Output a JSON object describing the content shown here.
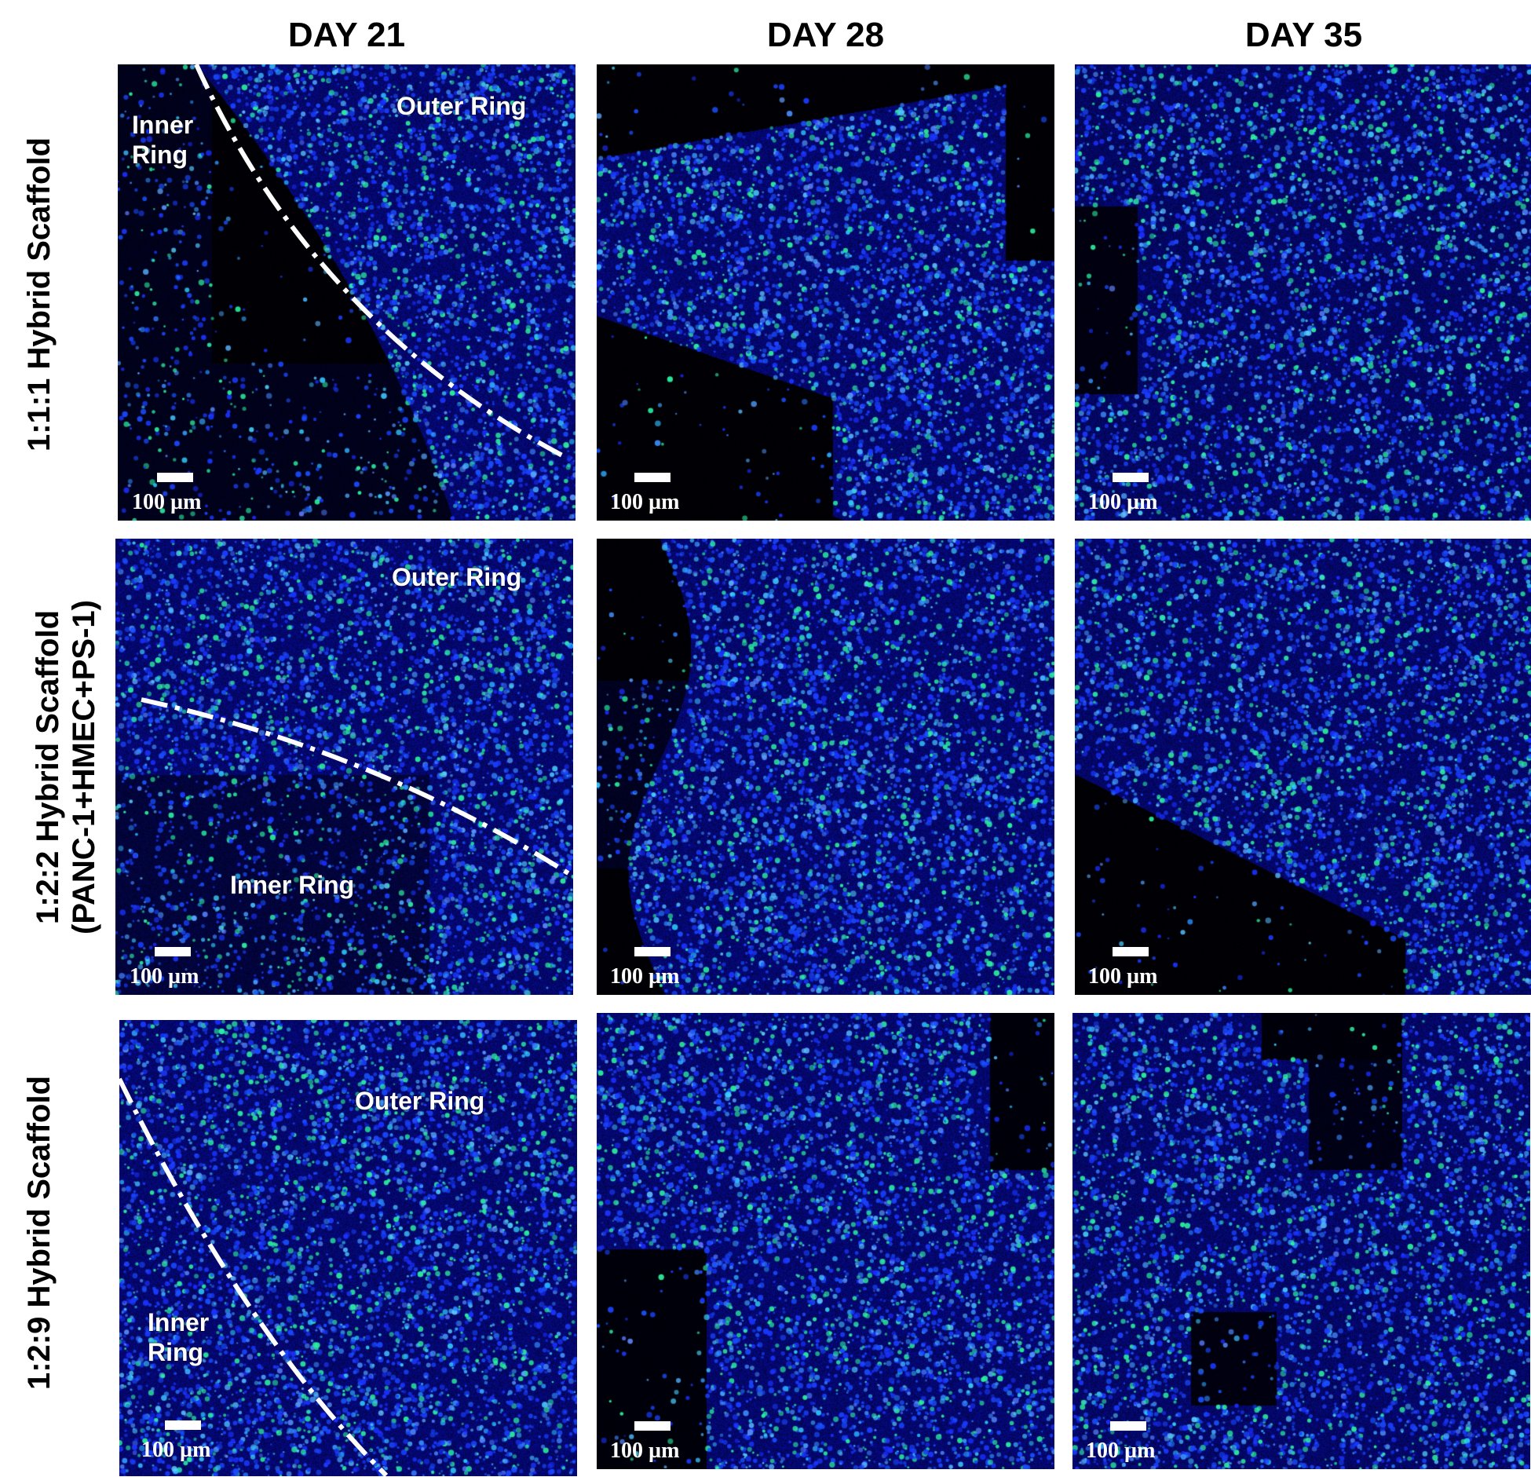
{
  "columns": [
    "DAY 21",
    "DAY 28",
    "DAY 35"
  ],
  "rows": [
    {
      "label_lines": [
        "1:1:1 Hybrid Scaffold"
      ]
    },
    {
      "label_lines": [
        "1:2:2  Hybrid Scaffold",
        "(PANC-1+HMEC+PS-1)"
      ]
    },
    {
      "label_lines": [
        "1:2:9 Hybrid Scaffold"
      ]
    }
  ],
  "ring_labels": {
    "inner": "Inner Ring",
    "inner_two_line": "Inner\nRing",
    "outer": "Outer Ring"
  },
  "scale_bar_text": "100 µm",
  "colors": {
    "nuclei_stain": "#1a2cff",
    "marker_stain": "#2cf0a0",
    "background": "#000000",
    "boundary_line": "#ffffff"
  }
}
